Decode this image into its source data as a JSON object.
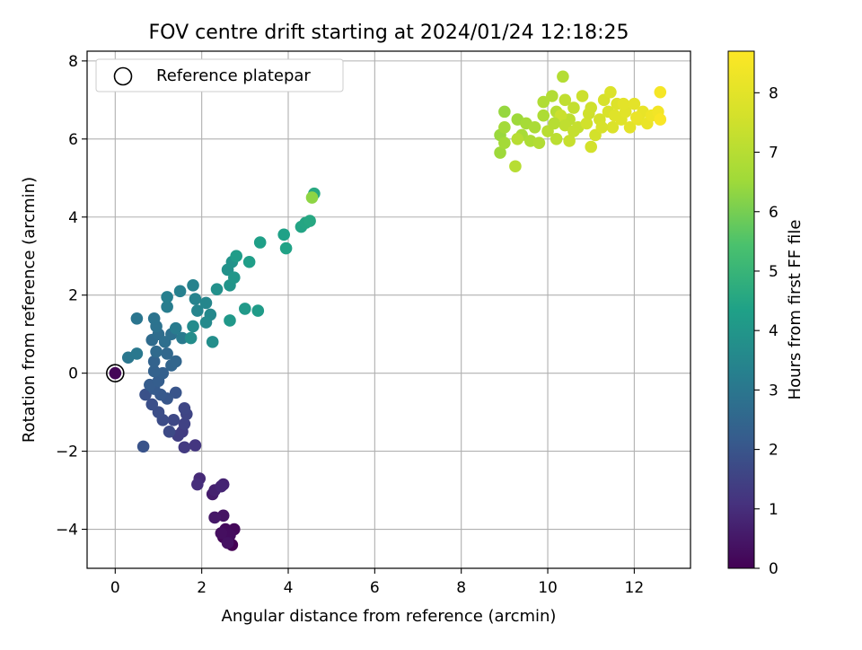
{
  "chart_data": {
    "type": "scatter",
    "title": "FOV centre drift starting at 2024/01/24 12:18:25",
    "xlabel": "Angular distance from reference (arcmin)",
    "ylabel": "Rotation from reference (arcmin)",
    "xlim": [
      -0.65,
      13.3
    ],
    "ylim": [
      -5.0,
      8.25
    ],
    "xticks": [
      0,
      2,
      4,
      6,
      8,
      10,
      12
    ],
    "yticks": [
      -4,
      -2,
      0,
      2,
      4,
      6,
      8
    ],
    "grid": true,
    "legend": {
      "position": "top-left",
      "entries": [
        "Reference platepar"
      ]
    },
    "reference_point": {
      "x": 0,
      "y": 0
    },
    "colorbar": {
      "label": "Hours from first FF file",
      "colormap": "viridis",
      "min": 0,
      "max": 8.7,
      "ticks": [
        0,
        1,
        2,
        3,
        4,
        5,
        6,
        7,
        8
      ]
    },
    "points": [
      {
        "x": 0.0,
        "y": 0.0,
        "c": 0.1
      },
      {
        "x": 2.7,
        "y": -4.4,
        "c": 0.0
      },
      {
        "x": 2.6,
        "y": -4.3,
        "c": 0.05
      },
      {
        "x": 2.5,
        "y": -4.2,
        "c": 0.1
      },
      {
        "x": 2.75,
        "y": -4.0,
        "c": 0.15
      },
      {
        "x": 2.55,
        "y": -4.0,
        "c": 0.2
      },
      {
        "x": 2.65,
        "y": -4.15,
        "c": 0.25
      },
      {
        "x": 2.45,
        "y": -4.1,
        "c": 0.3
      },
      {
        "x": 2.6,
        "y": -4.35,
        "c": 0.35
      },
      {
        "x": 2.5,
        "y": -3.65,
        "c": 0.4
      },
      {
        "x": 2.3,
        "y": -3.7,
        "c": 0.5
      },
      {
        "x": 2.25,
        "y": -3.1,
        "c": 0.6
      },
      {
        "x": 2.3,
        "y": -3.0,
        "c": 0.7
      },
      {
        "x": 2.5,
        "y": -2.85,
        "c": 0.75
      },
      {
        "x": 2.45,
        "y": -2.9,
        "c": 0.8
      },
      {
        "x": 1.95,
        "y": -2.7,
        "c": 0.9
      },
      {
        "x": 1.9,
        "y": -2.85,
        "c": 1.0
      },
      {
        "x": 1.85,
        "y": -1.85,
        "c": 1.2
      },
      {
        "x": 1.6,
        "y": -1.9,
        "c": 1.3
      },
      {
        "x": 1.55,
        "y": -1.5,
        "c": 1.35
      },
      {
        "x": 1.45,
        "y": -1.6,
        "c": 1.4
      },
      {
        "x": 1.6,
        "y": -1.3,
        "c": 1.5
      },
      {
        "x": 1.65,
        "y": -1.05,
        "c": 1.55
      },
      {
        "x": 1.6,
        "y": -0.9,
        "c": 1.6
      },
      {
        "x": 1.35,
        "y": -1.2,
        "c": 1.65
      },
      {
        "x": 1.25,
        "y": -1.5,
        "c": 1.7
      },
      {
        "x": 1.1,
        "y": -1.2,
        "c": 1.75
      },
      {
        "x": 1.0,
        "y": -1.0,
        "c": 1.8
      },
      {
        "x": 0.85,
        "y": -0.8,
        "c": 1.85
      },
      {
        "x": 0.7,
        "y": -0.55,
        "c": 1.9
      },
      {
        "x": 0.65,
        "y": -1.88,
        "c": 1.95
      },
      {
        "x": 1.4,
        "y": -0.5,
        "c": 2.0
      },
      {
        "x": 1.2,
        "y": -0.65,
        "c": 2.05
      },
      {
        "x": 1.05,
        "y": -0.55,
        "c": 2.1
      },
      {
        "x": 0.9,
        "y": -0.4,
        "c": 2.15
      },
      {
        "x": 0.8,
        "y": -0.3,
        "c": 2.2
      },
      {
        "x": 1.0,
        "y": -0.2,
        "c": 2.25
      },
      {
        "x": 1.1,
        "y": 0.0,
        "c": 2.3
      },
      {
        "x": 0.9,
        "y": 0.05,
        "c": 2.35
      },
      {
        "x": 0.9,
        "y": 0.3,
        "c": 2.4
      },
      {
        "x": 1.3,
        "y": 0.2,
        "c": 2.45
      },
      {
        "x": 1.4,
        "y": 0.3,
        "c": 2.5
      },
      {
        "x": 1.2,
        "y": 0.5,
        "c": 2.55
      },
      {
        "x": 0.95,
        "y": 0.55,
        "c": 2.6
      },
      {
        "x": 0.85,
        "y": 0.85,
        "c": 2.65
      },
      {
        "x": 1.0,
        "y": 1.0,
        "c": 2.7
      },
      {
        "x": 1.15,
        "y": 0.8,
        "c": 2.75
      },
      {
        "x": 1.3,
        "y": 1.0,
        "c": 2.8
      },
      {
        "x": 0.95,
        "y": 1.2,
        "c": 2.85
      },
      {
        "x": 0.9,
        "y": 1.4,
        "c": 2.9
      },
      {
        "x": 0.5,
        "y": 1.4,
        "c": 2.95
      },
      {
        "x": 0.3,
        "y": 0.4,
        "c": 3.0
      },
      {
        "x": 0.5,
        "y": 0.5,
        "c": 3.05
      },
      {
        "x": 1.55,
        "y": 0.9,
        "c": 3.1
      },
      {
        "x": 1.4,
        "y": 1.15,
        "c": 3.15
      },
      {
        "x": 1.2,
        "y": 1.7,
        "c": 3.2
      },
      {
        "x": 1.2,
        "y": 1.95,
        "c": 3.25
      },
      {
        "x": 1.5,
        "y": 2.1,
        "c": 3.3
      },
      {
        "x": 1.8,
        "y": 2.25,
        "c": 3.35
      },
      {
        "x": 1.85,
        "y": 1.9,
        "c": 3.4
      },
      {
        "x": 1.9,
        "y": 1.6,
        "c": 3.45
      },
      {
        "x": 2.1,
        "y": 1.8,
        "c": 3.5
      },
      {
        "x": 2.2,
        "y": 1.5,
        "c": 3.55
      },
      {
        "x": 2.1,
        "y": 1.3,
        "c": 3.6
      },
      {
        "x": 1.8,
        "y": 1.2,
        "c": 3.65
      },
      {
        "x": 1.75,
        "y": 0.9,
        "c": 3.7
      },
      {
        "x": 2.25,
        "y": 0.8,
        "c": 3.75
      },
      {
        "x": 2.35,
        "y": 2.15,
        "c": 3.8
      },
      {
        "x": 2.6,
        "y": 2.65,
        "c": 3.85
      },
      {
        "x": 2.7,
        "y": 2.85,
        "c": 3.9
      },
      {
        "x": 2.65,
        "y": 2.25,
        "c": 3.95
      },
      {
        "x": 2.75,
        "y": 2.45,
        "c": 4.0
      },
      {
        "x": 2.65,
        "y": 1.35,
        "c": 4.05
      },
      {
        "x": 3.0,
        "y": 1.65,
        "c": 4.1
      },
      {
        "x": 3.3,
        "y": 1.6,
        "c": 4.15
      },
      {
        "x": 2.8,
        "y": 3.0,
        "c": 4.2
      },
      {
        "x": 3.1,
        "y": 2.85,
        "c": 4.25
      },
      {
        "x": 3.35,
        "y": 3.35,
        "c": 4.3
      },
      {
        "x": 3.9,
        "y": 3.55,
        "c": 4.35
      },
      {
        "x": 3.95,
        "y": 3.2,
        "c": 4.4
      },
      {
        "x": 4.3,
        "y": 3.75,
        "c": 4.45
      },
      {
        "x": 4.4,
        "y": 3.85,
        "c": 4.5
      },
      {
        "x": 4.5,
        "y": 3.9,
        "c": 4.55
      },
      {
        "x": 4.6,
        "y": 4.6,
        "c": 4.6
      },
      {
        "x": 4.55,
        "y": 4.5,
        "c": 6.3
      },
      {
        "x": 9.0,
        "y": 6.7,
        "c": 6.4
      },
      {
        "x": 8.9,
        "y": 6.1,
        "c": 6.45
      },
      {
        "x": 9.3,
        "y": 6.5,
        "c": 6.5
      },
      {
        "x": 9.0,
        "y": 6.3,
        "c": 6.6
      },
      {
        "x": 9.5,
        "y": 6.4,
        "c": 6.65
      },
      {
        "x": 9.4,
        "y": 6.1,
        "c": 6.7
      },
      {
        "x": 9.7,
        "y": 6.3,
        "c": 6.75
      },
      {
        "x": 9.9,
        "y": 6.6,
        "c": 6.8
      },
      {
        "x": 9.9,
        "y": 6.95,
        "c": 6.85
      },
      {
        "x": 10.1,
        "y": 7.1,
        "c": 6.9
      },
      {
        "x": 10.35,
        "y": 7.6,
        "c": 6.95
      },
      {
        "x": 10.2,
        "y": 6.7,
        "c": 7.0
      },
      {
        "x": 9.25,
        "y": 5.3,
        "c": 7.0
      },
      {
        "x": 8.9,
        "y": 5.65,
        "c": 6.5
      },
      {
        "x": 9.0,
        "y": 5.9,
        "c": 6.6
      },
      {
        "x": 9.6,
        "y": 5.95,
        "c": 6.8
      },
      {
        "x": 9.8,
        "y": 5.9,
        "c": 6.9
      },
      {
        "x": 9.3,
        "y": 6.0,
        "c": 7.0
      },
      {
        "x": 10.0,
        "y": 6.2,
        "c": 7.05
      },
      {
        "x": 10.2,
        "y": 6.0,
        "c": 7.1
      },
      {
        "x": 10.5,
        "y": 6.5,
        "c": 7.15
      },
      {
        "x": 10.4,
        "y": 7.0,
        "c": 7.2
      },
      {
        "x": 10.6,
        "y": 6.8,
        "c": 7.25
      },
      {
        "x": 10.7,
        "y": 6.3,
        "c": 7.3
      },
      {
        "x": 10.5,
        "y": 5.95,
        "c": 7.35
      },
      {
        "x": 10.3,
        "y": 6.6,
        "c": 7.4
      },
      {
        "x": 10.8,
        "y": 7.1,
        "c": 7.45
      },
      {
        "x": 11.0,
        "y": 6.8,
        "c": 7.5
      },
      {
        "x": 10.9,
        "y": 6.4,
        "c": 7.55
      },
      {
        "x": 11.1,
        "y": 6.1,
        "c": 7.6
      },
      {
        "x": 11.2,
        "y": 6.5,
        "c": 7.65
      },
      {
        "x": 11.3,
        "y": 7.0,
        "c": 7.7
      },
      {
        "x": 11.4,
        "y": 6.7,
        "c": 7.75
      },
      {
        "x": 11.5,
        "y": 6.3,
        "c": 7.8
      },
      {
        "x": 11.6,
        "y": 6.9,
        "c": 7.85
      },
      {
        "x": 11.7,
        "y": 6.5,
        "c": 7.9
      },
      {
        "x": 11.8,
        "y": 6.7,
        "c": 7.95
      },
      {
        "x": 11.9,
        "y": 6.3,
        "c": 8.0
      },
      {
        "x": 12.0,
        "y": 6.9,
        "c": 8.05
      },
      {
        "x": 12.1,
        "y": 6.5,
        "c": 8.1
      },
      {
        "x": 12.2,
        "y": 6.7,
        "c": 8.15
      },
      {
        "x": 12.3,
        "y": 6.4,
        "c": 8.2
      },
      {
        "x": 12.4,
        "y": 6.6,
        "c": 8.3
      },
      {
        "x": 12.55,
        "y": 6.7,
        "c": 8.4
      },
      {
        "x": 12.6,
        "y": 7.2,
        "c": 8.5
      },
      {
        "x": 12.6,
        "y": 6.5,
        "c": 8.6
      },
      {
        "x": 11.0,
        "y": 5.8,
        "c": 7.6
      },
      {
        "x": 11.45,
        "y": 7.2,
        "c": 7.8
      },
      {
        "x": 10.4,
        "y": 6.35,
        "c": 7.2
      },
      {
        "x": 10.6,
        "y": 6.2,
        "c": 7.3
      },
      {
        "x": 11.25,
        "y": 6.3,
        "c": 7.7
      },
      {
        "x": 11.75,
        "y": 6.9,
        "c": 8.0
      },
      {
        "x": 12.05,
        "y": 6.55,
        "c": 8.2
      },
      {
        "x": 11.55,
        "y": 6.6,
        "c": 7.9
      },
      {
        "x": 10.95,
        "y": 6.65,
        "c": 7.5
      },
      {
        "x": 10.15,
        "y": 6.4,
        "c": 7.0
      }
    ]
  }
}
